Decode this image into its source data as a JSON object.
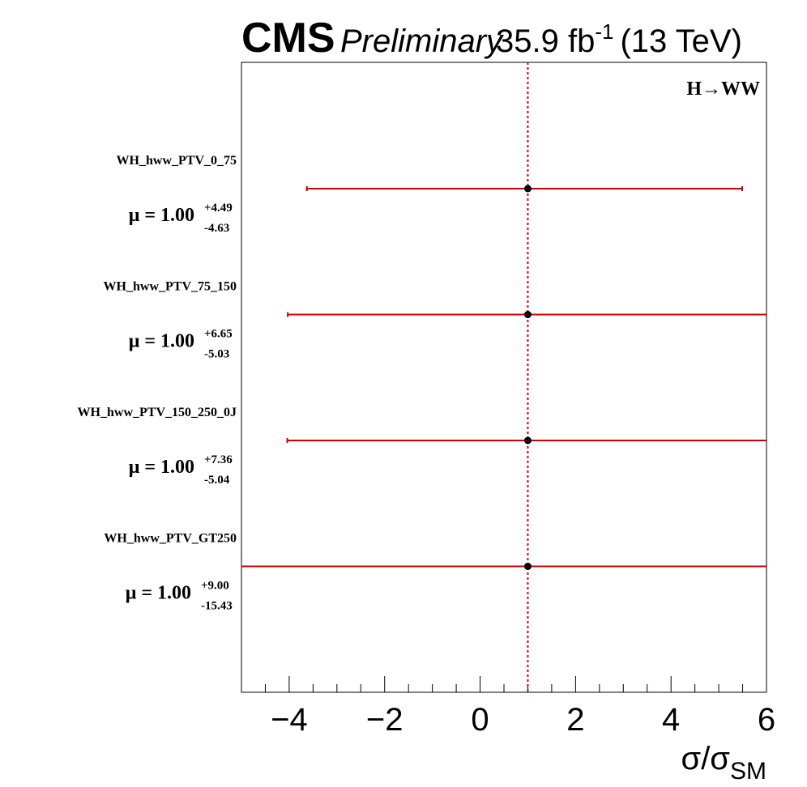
{
  "header": {
    "experiment": "CMS",
    "status": "Preliminary",
    "lumi_value": "35.9 fb",
    "lumi_exp": "-1",
    "energy": "(13 TeV)"
  },
  "chart_data": {
    "type": "scatter",
    "channel_label": "H→WW",
    "xlabel_main": "σ/σ",
    "xlabel_sub": "SM",
    "xlim": [
      -5,
      6
    ],
    "xticks": [
      -4,
      -2,
      0,
      2,
      4,
      6
    ],
    "xtick_labels": [
      "−4",
      "−2",
      "0",
      "2",
      "4",
      "6"
    ],
    "reference_line_x": 1.0,
    "mu_prefix": "μ = ",
    "categories": [
      {
        "name": "WH_hww_PTV_0_75",
        "mu": 1.0,
        "mu_text": "1.00",
        "err_up": 4.49,
        "err_down": 4.63,
        "up_text": "+4.49",
        "down_text": "-4.63"
      },
      {
        "name": "WH_hww_PTV_75_150",
        "mu": 1.0,
        "mu_text": "1.00",
        "err_up": 6.65,
        "err_down": 5.03,
        "up_text": "+6.65",
        "down_text": "-5.03"
      },
      {
        "name": "WH_hww_PTV_150_250_0J",
        "mu": 1.0,
        "mu_text": "1.00",
        "err_up": 7.36,
        "err_down": 5.04,
        "up_text": "+7.36",
        "down_text": "-5.04"
      },
      {
        "name": "WH_hww_PTV_GT250",
        "mu": 1.0,
        "mu_text": "1.00",
        "err_up": 9.0,
        "err_down": 15.43,
        "up_text": "+9.00",
        "down_text": "-15.43"
      }
    ],
    "colors": {
      "error_bar": "#cc0000",
      "reference_line": "#dd0000",
      "point": "#000000",
      "frame": "#000000"
    }
  }
}
